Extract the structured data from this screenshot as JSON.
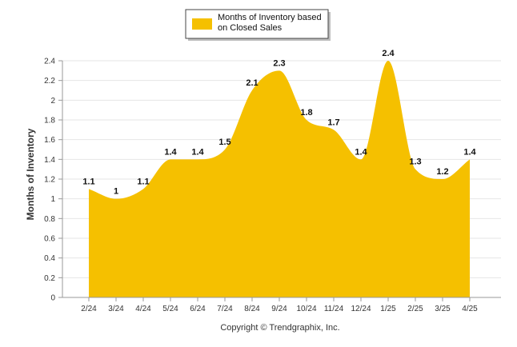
{
  "chart_data": {
    "type": "area",
    "categories": [
      "2/24",
      "3/24",
      "4/24",
      "5/24",
      "6/24",
      "7/24",
      "8/24",
      "9/24",
      "10/24",
      "11/24",
      "12/24",
      "1/25",
      "2/25",
      "3/25",
      "4/25"
    ],
    "series": [
      {
        "name": "Months of Inventory based on Closed Sales",
        "values": [
          1.1,
          1.0,
          1.1,
          1.4,
          1.4,
          1.5,
          2.1,
          2.3,
          1.8,
          1.7,
          1.4,
          2.4,
          1.3,
          1.2,
          1.4
        ],
        "labels": [
          "1.1",
          "1",
          "1.1",
          "1.4",
          "1.4",
          "1.5",
          "2.1",
          "2.3",
          "1.8",
          "1.7",
          "1.4",
          "2.4",
          "1.3",
          "1.2",
          "1.4"
        ],
        "color": "#f5c000"
      }
    ],
    "legend_lines": [
      "Months of Inventory based",
      "on Closed Sales"
    ],
    "ylabel": "Months of Inventory",
    "ylim": [
      0,
      2.4
    ],
    "yticks": [
      "0",
      "0.2",
      "0.4",
      "0.6",
      "0.8",
      "1",
      "1.2",
      "1.4",
      "1.6",
      "1.8",
      "2",
      "2.2",
      "2.4"
    ],
    "grid": true,
    "legend_position": "top-center",
    "credit": "Copyright © Trendgraphix, Inc."
  }
}
